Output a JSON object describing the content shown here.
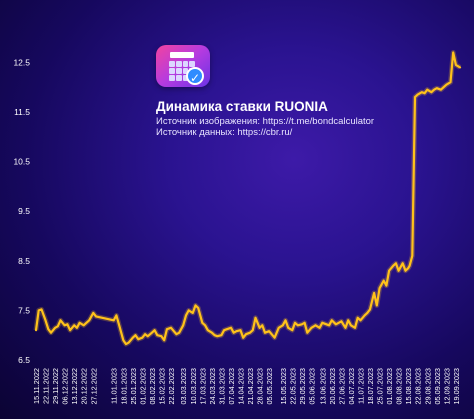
{
  "title": "Динамика ставки RUONIA",
  "source_image": "Источник изображения: https://t.me/bondcalculator",
  "source_data": "Источник данных: https://cbr.ru/",
  "logo_icon": "calculator-check-icon",
  "colors": {
    "line": "#ffc21a",
    "tick_text": "#ffffff",
    "background_center": "#3d1aa8",
    "background_edge": "#0b0333"
  },
  "chart_data": {
    "type": "line",
    "title": "Динамика ставки RUONIA",
    "xlabel": "",
    "ylabel": "",
    "ylim": [
      6.5,
      12.75
    ],
    "yticks": [
      6.5,
      7.5,
      8.5,
      9.5,
      10.5,
      11.5,
      12.5
    ],
    "ytick_labels": [
      "6.5",
      "7.5",
      "8.5",
      "9.5",
      "10.5",
      "11.5",
      "12.5"
    ],
    "grid": false,
    "legend": "none",
    "xtick_labels": [
      "15.11.2022",
      "22.11.2022",
      "29.11.2022",
      "06.12.2022",
      "13.12.2022",
      "20.12.2022",
      "27.12.2022",
      "11.01.2023",
      "18.01.2023",
      "25.01.2023",
      "01.02.2023",
      "08.02.2023",
      "15.02.2023",
      "22.02.2023",
      "03.03.2023",
      "10.03.2023",
      "17.03.2023",
      "24.03.2023",
      "31.03.2023",
      "07.04.2023",
      "14.04.2023",
      "21.04.2023",
      "28.04.2023",
      "05.05.2023",
      "15.05.2023",
      "22.05.2023",
      "29.05.2023",
      "05.06.2023",
      "13.06.2023",
      "20.06.2023",
      "27.06.2023",
      "04.07.2023",
      "11.07.2023",
      "18.07.2023",
      "25.07.2023",
      "01.08.2023",
      "08.08.2023",
      "15.08.2023",
      "22.08.2023",
      "29.08.2023",
      "05.09.2023",
      "12.09.2023",
      "19.09.2023"
    ],
    "x": [
      "15.11.2022",
      "17.11.2022",
      "19.11.2022",
      "22.11.2022",
      "24.11.2022",
      "26.11.2022",
      "29.11.2022",
      "01.12.2022",
      "03.12.2022",
      "06.12.2022",
      "08.12.2022",
      "10.12.2022",
      "13.12.2022",
      "15.12.2022",
      "17.12.2022",
      "20.12.2022",
      "22.12.2022",
      "24.12.2022",
      "27.12.2022",
      "29.12.2022",
      "11.01.2023",
      "13.01.2023",
      "15.01.2023",
      "18.01.2023",
      "20.01.2023",
      "22.01.2023",
      "25.01.2023",
      "27.01.2023",
      "29.01.2023",
      "01.02.2023",
      "03.02.2023",
      "05.02.2023",
      "08.02.2023",
      "10.02.2023",
      "12.02.2023",
      "15.02.2023",
      "17.02.2023",
      "19.02.2023",
      "22.02.2023",
      "26.02.2023",
      "28.02.2023",
      "03.03.2023",
      "05.03.2023",
      "07.03.2023",
      "10.03.2023",
      "12.03.2023",
      "14.03.2023",
      "17.03.2023",
      "19.03.2023",
      "21.03.2023",
      "24.03.2023",
      "26.03.2023",
      "28.03.2023",
      "31.03.2023",
      "02.04.2023",
      "04.04.2023",
      "07.04.2023",
      "09.04.2023",
      "11.04.2023",
      "14.04.2023",
      "16.04.2023",
      "18.04.2023",
      "21.04.2023",
      "23.04.2023",
      "25.04.2023",
      "28.04.2023",
      "30.04.2023",
      "02.05.2023",
      "05.05.2023",
      "09.05.2023",
      "12.05.2023",
      "15.05.2023",
      "17.05.2023",
      "19.05.2023",
      "22.05.2023",
      "24.05.2023",
      "26.05.2023",
      "29.05.2023",
      "31.05.2023",
      "02.06.2023",
      "05.06.2023",
      "08.06.2023",
      "11.06.2023",
      "13.06.2023",
      "16.06.2023",
      "18.06.2023",
      "20.06.2023",
      "23.06.2023",
      "25.06.2023",
      "27.06.2023",
      "30.06.2023",
      "02.07.2023",
      "04.07.2023",
      "07.07.2023",
      "09.07.2023",
      "11.07.2023",
      "14.07.2023",
      "16.07.2023",
      "18.07.2023",
      "21.07.2023",
      "23.07.2023",
      "25.07.2023",
      "28.07.2023",
      "30.07.2023",
      "01.08.2023",
      "04.08.2023",
      "06.08.2023",
      "08.08.2023",
      "11.08.2023",
      "13.08.2023",
      "15.08.2023",
      "16.08.2023",
      "18.08.2023",
      "20.08.2023",
      "22.08.2023",
      "25.08.2023",
      "27.08.2023",
      "29.08.2023",
      "01.09.2023",
      "03.09.2023",
      "05.09.2023",
      "08.09.2023",
      "10.09.2023",
      "12.09.2023",
      "15.09.2023",
      "17.09.2023",
      "19.09.2023",
      "22.09.2023"
    ],
    "series": [
      {
        "values": [
          7.1,
          7.5,
          7.52,
          7.3,
          7.12,
          7.05,
          7.15,
          7.18,
          7.3,
          7.2,
          7.22,
          7.1,
          7.2,
          7.15,
          7.25,
          7.2,
          7.25,
          7.3,
          7.45,
          7.38,
          7.3,
          7.4,
          7.2,
          6.9,
          6.82,
          6.85,
          6.95,
          7.0,
          6.92,
          6.95,
          7.02,
          6.98,
          7.05,
          7.1,
          7.0,
          6.98,
          6.9,
          7.12,
          7.15,
          7.02,
          7.05,
          7.2,
          7.4,
          7.5,
          7.45,
          7.6,
          7.55,
          7.25,
          7.2,
          7.1,
          7.05,
          7.0,
          6.98,
          7.0,
          7.1,
          7.12,
          7.15,
          7.05,
          7.08,
          7.1,
          6.95,
          7.02,
          7.05,
          7.1,
          7.35,
          7.15,
          7.2,
          7.05,
          7.08,
          6.95,
          7.15,
          7.2,
          7.3,
          7.15,
          7.1,
          7.25,
          7.2,
          7.22,
          7.25,
          7.05,
          7.15,
          7.2,
          7.15,
          7.25,
          7.22,
          7.2,
          7.3,
          7.22,
          7.25,
          7.28,
          7.15,
          7.3,
          7.2,
          7.15,
          7.35,
          7.3,
          7.4,
          7.45,
          7.52,
          7.85,
          7.6,
          7.95,
          8.1,
          8.0,
          8.3,
          8.4,
          8.45,
          8.3,
          8.45,
          8.3,
          8.35,
          8.4,
          8.6,
          11.8,
          11.85,
          11.9,
          11.88,
          11.95,
          11.9,
          11.95,
          11.98,
          11.95,
          12.0,
          12.05,
          12.1,
          12.7,
          12.45,
          12.4
        ]
      }
    ]
  }
}
